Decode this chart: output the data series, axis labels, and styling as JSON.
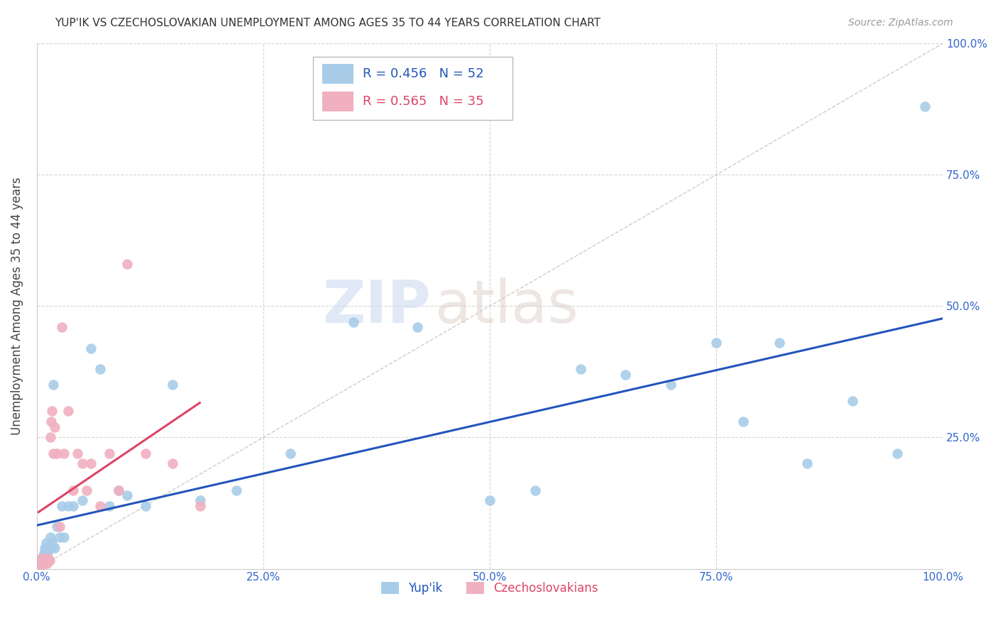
{
  "title": "YUP'IK VS CZECHOSLOVAKIAN UNEMPLOYMENT AMONG AGES 35 TO 44 YEARS CORRELATION CHART",
  "source": "Source: ZipAtlas.com",
  "ylabel": "Unemployment Among Ages 35 to 44 years",
  "xlim": [
    0,
    1.0
  ],
  "ylim": [
    0,
    1.0
  ],
  "xticks": [
    0.0,
    0.25,
    0.5,
    0.75,
    1.0
  ],
  "yticks": [
    0.0,
    0.25,
    0.5,
    0.75,
    1.0
  ],
  "xticklabels": [
    "0.0%",
    "25.0%",
    "50.0%",
    "75.0%",
    "100.0%"
  ],
  "right_yticklabels": [
    "",
    "25.0%",
    "50.0%",
    "75.0%",
    "100.0%"
  ],
  "background_color": "#ffffff",
  "watermark_zip": "ZIP",
  "watermark_atlas": "atlas",
  "yupik_color": "#a8cce8",
  "czech_color": "#f0b0c0",
  "yupik_line_color": "#2255bb",
  "czech_line_color": "#dd4466",
  "legend_R_yupik": "R = 0.456",
  "legend_N_yupik": "N = 52",
  "legend_R_czech": "R = 0.565",
  "legend_N_czech": "N = 35",
  "yupik_x": [
    0.002,
    0.003,
    0.004,
    0.005,
    0.005,
    0.006,
    0.007,
    0.007,
    0.008,
    0.008,
    0.009,
    0.01,
    0.01,
    0.011,
    0.012,
    0.013,
    0.015,
    0.016,
    0.017,
    0.018,
    0.02,
    0.022,
    0.025,
    0.028,
    0.03,
    0.035,
    0.04,
    0.05,
    0.06,
    0.07,
    0.08,
    0.09,
    0.1,
    0.12,
    0.15,
    0.18,
    0.22,
    0.28,
    0.35,
    0.42,
    0.5,
    0.55,
    0.6,
    0.65,
    0.7,
    0.75,
    0.78,
    0.82,
    0.85,
    0.9,
    0.95,
    0.98
  ],
  "yupik_y": [
    0.01,
    0.005,
    0.015,
    0.02,
    0.01,
    0.02,
    0.015,
    0.025,
    0.03,
    0.02,
    0.04,
    0.03,
    0.05,
    0.02,
    0.04,
    0.035,
    0.06,
    0.04,
    0.05,
    0.35,
    0.04,
    0.08,
    0.06,
    0.12,
    0.06,
    0.12,
    0.12,
    0.13,
    0.42,
    0.38,
    0.12,
    0.15,
    0.14,
    0.12,
    0.35,
    0.13,
    0.15,
    0.22,
    0.47,
    0.46,
    0.13,
    0.15,
    0.38,
    0.37,
    0.35,
    0.43,
    0.28,
    0.43,
    0.2,
    0.32,
    0.22,
    0.88
  ],
  "czech_x": [
    0.002,
    0.003,
    0.004,
    0.005,
    0.006,
    0.007,
    0.008,
    0.009,
    0.01,
    0.011,
    0.012,
    0.013,
    0.014,
    0.015,
    0.016,
    0.017,
    0.018,
    0.02,
    0.022,
    0.025,
    0.028,
    0.03,
    0.035,
    0.04,
    0.045,
    0.05,
    0.055,
    0.06,
    0.07,
    0.08,
    0.09,
    0.1,
    0.12,
    0.15,
    0.18
  ],
  "czech_y": [
    0.005,
    0.01,
    0.005,
    0.02,
    0.01,
    0.015,
    0.01,
    0.015,
    0.02,
    0.01,
    0.015,
    0.02,
    0.015,
    0.25,
    0.28,
    0.3,
    0.22,
    0.27,
    0.22,
    0.08,
    0.46,
    0.22,
    0.3,
    0.15,
    0.22,
    0.2,
    0.15,
    0.2,
    0.12,
    0.22,
    0.15,
    0.58,
    0.22,
    0.2,
    0.12
  ]
}
